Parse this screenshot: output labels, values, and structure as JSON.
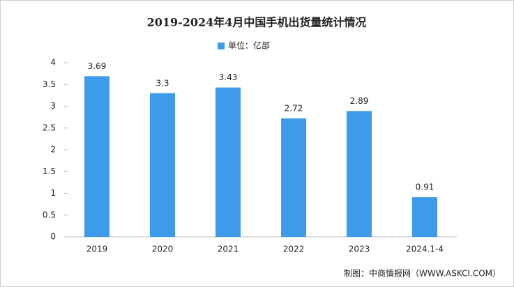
{
  "chart_data": {
    "type": "bar",
    "title": "2019-2024年4月中国手机出货量统计情况",
    "legend_label": "单位：亿部",
    "categories": [
      "2019",
      "2020",
      "2021",
      "2022",
      "2023",
      "2024.1-4"
    ],
    "values": [
      3.69,
      3.3,
      3.43,
      2.72,
      2.89,
      0.91
    ],
    "color": "#3d9be9",
    "ylim": [
      0,
      4
    ],
    "yticks": [
      0,
      0.5,
      1,
      1.5,
      2,
      2.5,
      3,
      3.5,
      4
    ],
    "grid": false,
    "source": "制图：中商情报网（WWW.ASKCI.COM）"
  }
}
